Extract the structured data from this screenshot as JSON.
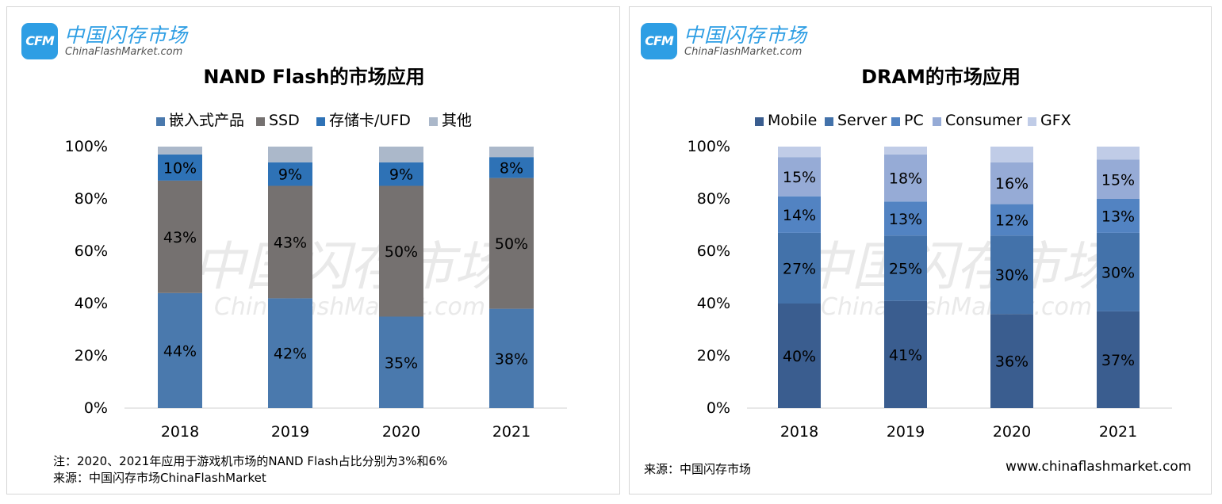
{
  "logo": {
    "badge": "CFM",
    "name_cn": "中国闪存市场",
    "name_en": "ChinaFlashMarket.com"
  },
  "watermark": {
    "cn": "中国闪存市场",
    "en": "ChinaFlashMarket.com"
  },
  "nand": {
    "footnote": "注：2020、2021年应用于游戏机市场的NAND Flash占比分别为3%和6%",
    "source": "来源：中国闪存市场ChinaFlashMarket"
  },
  "dram": {
    "source": "来源：中国闪存市场",
    "website": "www.chinaflashmarket.com"
  },
  "chart_data": [
    {
      "type": "bar",
      "stacked": true,
      "title": "NAND Flash的市场应用",
      "categories": [
        "2018",
        "2019",
        "2020",
        "2021"
      ],
      "ylim": [
        0,
        100
      ],
      "yticks": [
        "0%",
        "20%",
        "40%",
        "60%",
        "80%",
        "100%"
      ],
      "legend_position": "top",
      "grid": false,
      "series": [
        {
          "name": "嵌入式产品",
          "color": "#4a79ad",
          "values": [
            44,
            42,
            35,
            38
          ],
          "labels": [
            "44%",
            "42%",
            "35%",
            "38%"
          ]
        },
        {
          "name": "SSD",
          "color": "#757170",
          "values": [
            43,
            43,
            50,
            50
          ],
          "labels": [
            "43%",
            "43%",
            "50%",
            "50%"
          ]
        },
        {
          "name": "存储卡/UFD",
          "color": "#2e72b6",
          "values": [
            10,
            9,
            9,
            8
          ],
          "labels": [
            "10%",
            "9%",
            "9%",
            "8%"
          ]
        },
        {
          "name": "其他",
          "color": "#abb8ca",
          "values": [
            3,
            6,
            6,
            4
          ],
          "labels": [
            "",
            "",
            "",
            ""
          ]
        }
      ]
    },
    {
      "type": "bar",
      "stacked": true,
      "title": "DRAM的市场应用",
      "categories": [
        "2018",
        "2019",
        "2020",
        "2021"
      ],
      "ylim": [
        0,
        100
      ],
      "yticks": [
        "0%",
        "20%",
        "40%",
        "60%",
        "80%",
        "100%"
      ],
      "legend_position": "top",
      "grid": false,
      "series": [
        {
          "name": "Mobile",
          "color": "#3a5d8f",
          "values": [
            40,
            41,
            36,
            37
          ],
          "labels": [
            "40%",
            "41%",
            "36%",
            "37%"
          ]
        },
        {
          "name": "Server",
          "color": "#4372aa",
          "values": [
            27,
            25,
            30,
            30
          ],
          "labels": [
            "27%",
            "25%",
            "30%",
            "30%"
          ]
        },
        {
          "name": "PC",
          "color": "#5283c2",
          "values": [
            14,
            13,
            12,
            13
          ],
          "labels": [
            "14%",
            "13%",
            "12%",
            "13%"
          ]
        },
        {
          "name": "Consumer",
          "color": "#96abd6",
          "values": [
            15,
            18,
            16,
            15
          ],
          "labels": [
            "15%",
            "18%",
            "16%",
            "15%"
          ]
        },
        {
          "name": "GFX",
          "color": "#c0cce7",
          "values": [
            4,
            3,
            6,
            5
          ],
          "labels": [
            "",
            "",
            "",
            ""
          ]
        }
      ]
    }
  ]
}
